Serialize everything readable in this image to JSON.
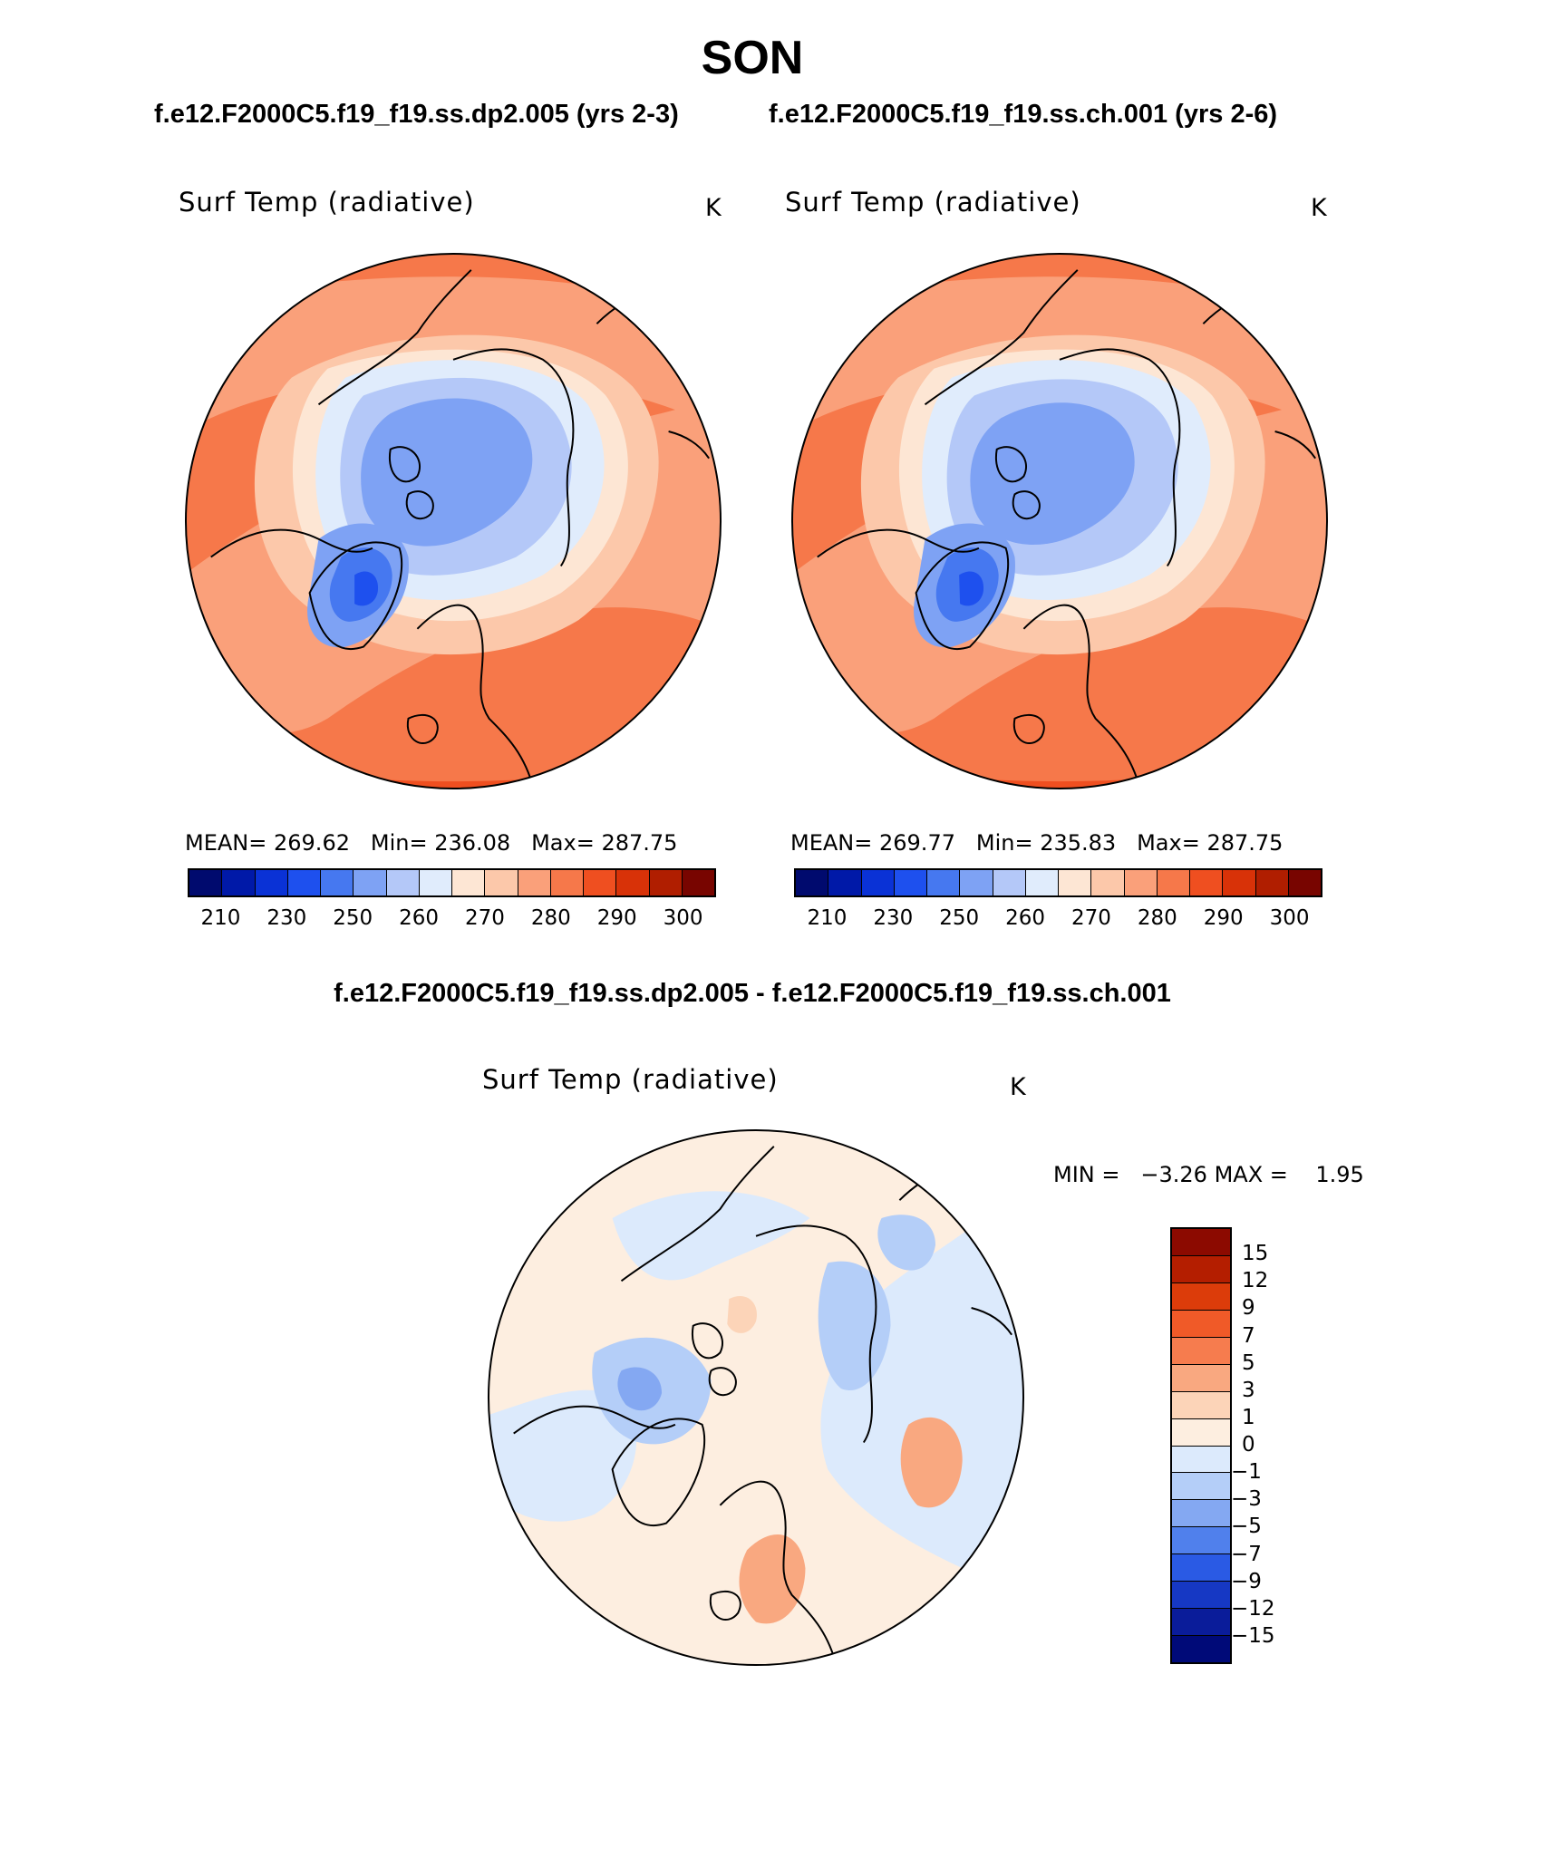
{
  "title": "SON",
  "subtitles": {
    "left": "f.e12.F2000C5.f19_f19.ss.dp2.005 (yrs 2-3)",
    "right": "f.e12.F2000C5.f19_f19.ss.ch.001 (yrs 2-6)"
  },
  "diff_title": "f.e12.F2000C5.f19_f19.ss.dp2.005 - f.e12.F2000C5.f19_f19.ss.ch.001",
  "panels": [
    {
      "variable": "Surf Temp (radiative)",
      "units": "K",
      "stats": {
        "mean_label": "MEAN=",
        "mean": "269.62",
        "min_label": "Min=",
        "min": "236.08",
        "max_label": "Max=",
        "max": "287.75"
      }
    },
    {
      "variable": "Surf Temp (radiative)",
      "units": "K",
      "stats": {
        "mean_label": "MEAN=",
        "mean": "269.77",
        "min_label": "Min=",
        "min": "235.83",
        "max_label": "Max=",
        "max": "287.75"
      }
    }
  ],
  "abs_colorbar": {
    "ticks": [
      "210",
      "230",
      "250",
      "260",
      "270",
      "280",
      "290",
      "300"
    ],
    "colors": [
      "#000a6e",
      "#0019a8",
      "#0a32d6",
      "#1e50ee",
      "#4678f0",
      "#7ea2f4",
      "#b4c8f8",
      "#e0ecfc",
      "#fde6d4",
      "#fcc8aa",
      "#faa07a",
      "#f6784a",
      "#ef4f20",
      "#d83208",
      "#b01e00",
      "#780500"
    ]
  },
  "diff_panel": {
    "variable": "Surf Temp (radiative)",
    "units": "K",
    "min_label": "MIN =",
    "min": "−3.26",
    "max_label": "MAX =",
    "max": "1.95",
    "colorbar_labels": [
      "15",
      "12",
      "9",
      "7",
      "5",
      "3",
      "1",
      "0",
      "−1",
      "−3",
      "−5",
      "−7",
      "−9",
      "−12",
      "−15"
    ],
    "colorbar_colors": [
      "#8c0a00",
      "#b41e00",
      "#dc3c0a",
      "#f05a28",
      "#f67c4e",
      "#f9a880",
      "#fcd4b8",
      "#fdeee0",
      "#dceafc",
      "#b4cef8",
      "#84a8f2",
      "#5080ec",
      "#2a5ae4",
      "#1638c4",
      "#0a1c9a",
      "#000a78"
    ]
  }
}
